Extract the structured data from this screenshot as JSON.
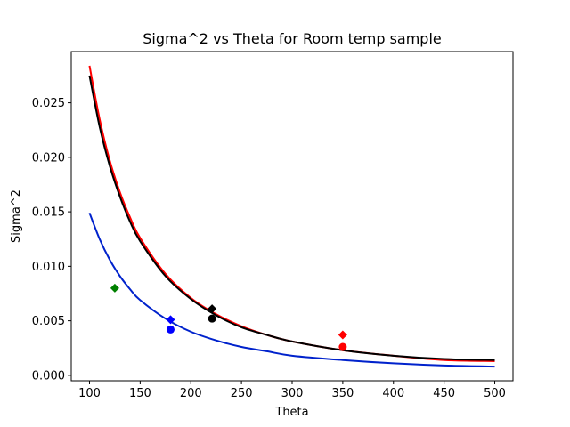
{
  "chart_data": {
    "type": "line",
    "title": "Sigma^2 vs Theta for Room temp sample",
    "xlabel": "Theta",
    "ylabel": "Sigma^2",
    "xlim": [
      82,
      518
    ],
    "ylim": [
      -0.0005,
      0.0297
    ],
    "grid": false,
    "legend": "none",
    "x_ticks": [
      100,
      150,
      200,
      250,
      300,
      350,
      400,
      450,
      500
    ],
    "x_tick_labels": [
      "100",
      "150",
      "200",
      "250",
      "300",
      "350",
      "400",
      "450",
      "500"
    ],
    "y_ticks": [
      0.0,
      0.005,
      0.01,
      0.015,
      0.02,
      0.025
    ],
    "y_tick_labels": [
      "0.000",
      "0.005",
      "0.010",
      "0.015",
      "0.020",
      "0.025"
    ],
    "series": [
      {
        "kind": "curve",
        "color": "#ff0000",
        "x": [
          100,
          110,
          120,
          130,
          140,
          150,
          175,
          200,
          225,
          250,
          275,
          300,
          350,
          400,
          450,
          500
        ],
        "y": [
          0.0284,
          0.0235,
          0.0197,
          0.0168,
          0.0145,
          0.0126,
          0.0093,
          0.0071,
          0.0056,
          0.0045,
          0.0037,
          0.0031,
          0.0023,
          0.0018,
          0.0014,
          0.0013
        ]
      },
      {
        "kind": "curve",
        "color": "#000000",
        "x": [
          100,
          110,
          120,
          130,
          140,
          150,
          175,
          200,
          225,
          250,
          275,
          300,
          350,
          400,
          450,
          500
        ],
        "y": [
          0.0275,
          0.0228,
          0.0192,
          0.0164,
          0.0141,
          0.0123,
          0.0091,
          0.007,
          0.0055,
          0.0044,
          0.0037,
          0.0031,
          0.0023,
          0.0018,
          0.0015,
          0.0014
        ]
      },
      {
        "kind": "curve",
        "color": "#0022cc",
        "x": [
          100,
          110,
          120,
          130,
          140,
          150,
          175,
          200,
          225,
          250,
          275,
          300,
          350,
          400,
          450,
          500
        ],
        "y": [
          0.0149,
          0.0125,
          0.0106,
          0.0091,
          0.0079,
          0.0069,
          0.0052,
          0.004,
          0.0032,
          0.0026,
          0.0022,
          0.0018,
          0.0014,
          0.0011,
          0.0009,
          0.0008
        ]
      },
      {
        "kind": "points",
        "marker": "diamond",
        "points": [
          {
            "x": 125,
            "y": 0.008,
            "color": "#008000"
          },
          {
            "x": 180,
            "y": 0.0051,
            "color": "#0000ff"
          },
          {
            "x": 221,
            "y": 0.0061,
            "color": "#000000"
          },
          {
            "x": 350,
            "y": 0.0037,
            "color": "#ff0000"
          }
        ]
      },
      {
        "kind": "points",
        "marker": "circle",
        "points": [
          {
            "x": 180,
            "y": 0.0042,
            "color": "#0000ff"
          },
          {
            "x": 221,
            "y": 0.0052,
            "color": "#000000"
          },
          {
            "x": 350,
            "y": 0.0026,
            "color": "#ff0000"
          }
        ]
      }
    ]
  }
}
